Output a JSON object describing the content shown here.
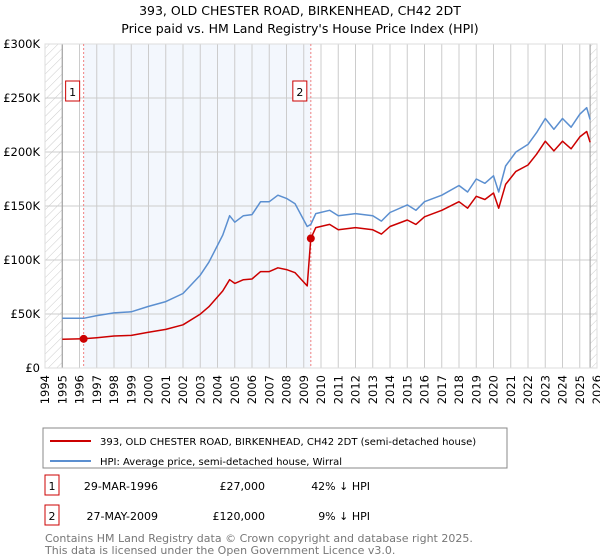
{
  "chart_data": {
    "type": "line",
    "title": "393, OLD CHESTER ROAD, BIRKENHEAD, CH42 2DT",
    "subtitle": "Price paid vs. HM Land Registry's House Price Index (HPI)",
    "xlabel": "",
    "ylabel": "",
    "xlim": [
      1994,
      2026
    ],
    "ylim": [
      0,
      300000
    ],
    "grid": true,
    "y_ticks": [
      {
        "value": 0,
        "label": "£0"
      },
      {
        "value": 50000,
        "label": "£50K"
      },
      {
        "value": 100000,
        "label": "£100K"
      },
      {
        "value": 150000,
        "label": "£150K"
      },
      {
        "value": 200000,
        "label": "£200K"
      },
      {
        "value": 250000,
        "label": "£250K"
      },
      {
        "value": 300000,
        "label": "£300K"
      }
    ],
    "x_ticks": [
      "1994",
      "1995",
      "1996",
      "1997",
      "1998",
      "1999",
      "2000",
      "2001",
      "2002",
      "2003",
      "2004",
      "2005",
      "2006",
      "2007",
      "2008",
      "2009",
      "2010",
      "2011",
      "2012",
      "2013",
      "2014",
      "2015",
      "2016",
      "2017",
      "2018",
      "2019",
      "2020",
      "2021",
      "2022",
      "2023",
      "2024",
      "2025",
      "2026"
    ],
    "data_range": [
      1995,
      2025.6
    ],
    "shaded_period": [
      1996.24,
      2009.41
    ],
    "series": [
      {
        "name": "393, OLD CHESTER ROAD, BIRKENHEAD, CH42 2DT (semi-detached house)",
        "color": "#cc0000",
        "x": [
          1995,
          1996.24,
          1997,
          1998,
          1999,
          2000,
          2001,
          2002,
          2003,
          2003.5,
          2004.3,
          2004.7,
          2005,
          2005.5,
          2006,
          2006.5,
          2007,
          2007.5,
          2008,
          2008.5,
          2009.2,
          2009.41,
          2009.7,
          2010.5,
          2011,
          2012,
          2013,
          2013.5,
          2014,
          2015,
          2015.5,
          2016,
          2017,
          2018,
          2018.5,
          2019,
          2019.5,
          2020,
          2020.3,
          2020.7,
          2021.3,
          2022,
          2022.5,
          2023,
          2023.5,
          2024,
          2024.5,
          2025,
          2025.4,
          2025.6
        ],
        "values": [
          26700,
          27000,
          28100,
          29600,
          30200,
          33100,
          35700,
          40000,
          49900,
          56800,
          71300,
          81800,
          78300,
          81800,
          82400,
          89300,
          89300,
          92800,
          91100,
          88200,
          76000,
          120000,
          130000,
          133000,
          128000,
          130000,
          128000,
          124000,
          131000,
          137000,
          133000,
          140000,
          146000,
          154000,
          148000,
          159000,
          156000,
          162000,
          148000,
          170000,
          182000,
          188000,
          198000,
          210000,
          201000,
          210000,
          203000,
          214000,
          219000,
          209000
        ]
      },
      {
        "name": "HPI: Average price, semi-detached house, Wirral",
        "color": "#5b8fd0",
        "x": [
          1995,
          1996.24,
          1997,
          1998,
          1999,
          2000,
          2001,
          2002,
          2003,
          2003.5,
          2004.3,
          2004.7,
          2005,
          2005.5,
          2006,
          2006.5,
          2007,
          2007.5,
          2008,
          2008.5,
          2009.2,
          2009.41,
          2009.7,
          2010.5,
          2011,
          2012,
          2013,
          2013.5,
          2014,
          2015,
          2015.5,
          2016,
          2017,
          2018,
          2018.5,
          2019,
          2019.5,
          2020,
          2020.3,
          2020.7,
          2021.3,
          2022,
          2022.5,
          2023,
          2023.5,
          2024,
          2024.5,
          2025,
          2025.4,
          2025.6
        ],
        "values": [
          46000,
          46000,
          48500,
          51000,
          52000,
          57000,
          61500,
          69000,
          86000,
          98000,
          123000,
          141000,
          135000,
          141000,
          142000,
          154000,
          154000,
          160000,
          157000,
          152000,
          131000,
          133000,
          143000,
          146000,
          141000,
          143000,
          141000,
          136000,
          144000,
          151000,
          146000,
          154000,
          160000,
          169000,
          163000,
          175000,
          171000,
          178000,
          163000,
          187000,
          200000,
          207000,
          218000,
          231000,
          221000,
          231000,
          223000,
          235000,
          241000,
          230000
        ]
      }
    ],
    "sales": [
      {
        "id": "1",
        "x": 1996.24,
        "value": 27000,
        "date": "29-MAR-1996",
        "price": "£27,000",
        "hpi": "42% ↓ HPI"
      },
      {
        "id": "2",
        "x": 2009.41,
        "value": 120000,
        "date": "27-MAY-2009",
        "price": "£120,000",
        "hpi": "9% ↓ HPI"
      }
    ],
    "legend": {
      "placement": "bottom"
    }
  },
  "footer": {
    "line1": "Contains HM Land Registry data © Crown copyright and database right 2025.",
    "line2": "This data is licensed under the Open Government Licence v3.0."
  }
}
